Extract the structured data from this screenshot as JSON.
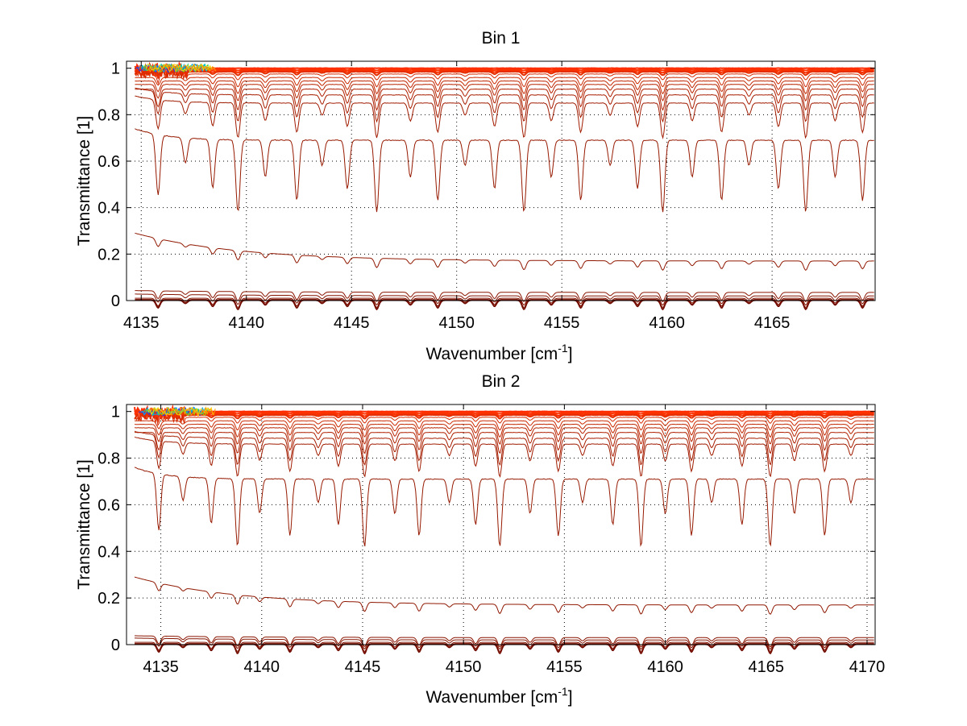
{
  "chart_data": [
    {
      "type": "line",
      "title": "Bin 1",
      "xlabel": "Wavenumber [cm",
      "xlabel_superscript": "-1",
      "xlabel_suffix": "]",
      "ylabel": "Transmittance [1]",
      "xlim": [
        4134.3,
        4169.9
      ],
      "ylim": [
        0,
        1.03
      ],
      "xticks": [
        4135,
        4140,
        4145,
        4150,
        4155,
        4160,
        4165
      ],
      "yticks": [
        0,
        0.2,
        0.4,
        0.6,
        0.8,
        1
      ],
      "ytick_labels": [
        "0",
        "0.2",
        "0.4",
        "0.6",
        "0.8",
        "1"
      ],
      "grid": true,
      "series_levels": [
        1.0,
        0.995,
        0.99,
        0.985,
        0.975,
        0.96,
        0.945,
        0.93,
        0.91,
        0.885,
        0.85,
        0.69,
        0.17,
        0.035,
        0.02,
        0.01,
        0.005,
        0.002,
        0.0
      ],
      "absorption_lines_x": [
        4135.8,
        4137.1,
        4138.4,
        4139.6,
        4140.9,
        4142.4,
        4143.6,
        4144.8,
        4146.2,
        4147.8,
        4149.1,
        4150.4,
        4151.8,
        4153.2,
        4154.5,
        4155.9,
        4157.3,
        4158.6,
        4159.8,
        4161.2,
        4162.6,
        4163.9,
        4165.3,
        4166.6,
        4168.0,
        4169.3
      ]
    },
    {
      "type": "line",
      "title": "Bin 2",
      "xlabel": "Wavenumber [cm",
      "xlabel_superscript": "-1",
      "xlabel_suffix": "]",
      "ylabel": "Transmittance [1]",
      "xlim": [
        4133.3,
        4170.4
      ],
      "ylim": [
        0,
        1.03
      ],
      "xticks": [
        4135,
        4140,
        4145,
        4150,
        4155,
        4160,
        4165,
        4170
      ],
      "yticks": [
        0,
        0.2,
        0.4,
        0.6,
        0.8,
        1
      ],
      "ytick_labels": [
        "0",
        "0.2",
        "0.4",
        "0.6",
        "0.8",
        "1"
      ],
      "grid": true,
      "series_levels": [
        1.0,
        0.995,
        0.99,
        0.985,
        0.975,
        0.96,
        0.945,
        0.93,
        0.91,
        0.885,
        0.86,
        0.71,
        0.17,
        0.03,
        0.02,
        0.01,
        0.005,
        0.002,
        0.0
      ],
      "absorption_lines_x": [
        4134.9,
        4136.1,
        4137.5,
        4138.8,
        4139.9,
        4141.4,
        4142.8,
        4143.8,
        4145.1,
        4146.6,
        4147.8,
        4149.3,
        4150.6,
        4151.8,
        4153.3,
        4154.7,
        4155.9,
        4157.4,
        4158.8,
        4160.0,
        4161.3,
        4162.3,
        4163.8,
        4165.2,
        4166.4,
        4167.9,
        4169.2
      ]
    }
  ]
}
